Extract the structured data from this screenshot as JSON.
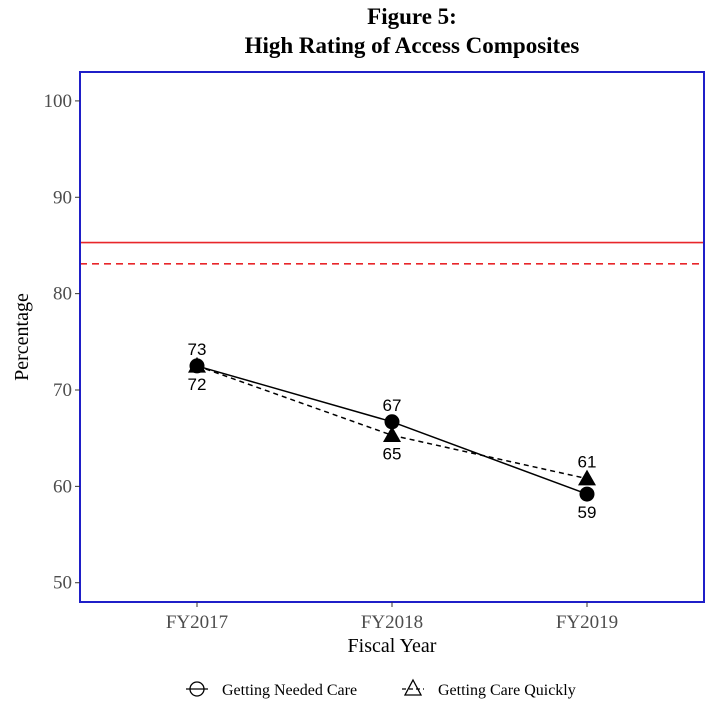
{
  "chart_data": {
    "type": "line",
    "title_lines": [
      "Figure 5:",
      "High Rating of Access Composites"
    ],
    "xlabel": "Fiscal Year",
    "ylabel": "Percentage",
    "categories": [
      "FY2017",
      "FY2018",
      "FY2019"
    ],
    "ylim": [
      48,
      103
    ],
    "yticks": [
      "50",
      "60",
      "70",
      "80",
      "90",
      "100"
    ],
    "grid": false,
    "legend_position": "bottom",
    "series": [
      {
        "name": "Getting Needed Care",
        "values": [
          72.5,
          66.7,
          59.2
        ],
        "labels": [
          "72",
          "67",
          "59"
        ],
        "label_position": [
          "below",
          "above",
          "below"
        ],
        "marker": "circle",
        "line": "solid",
        "color": "#000000"
      },
      {
        "name": "Getting Care Quickly",
        "values": [
          72.5,
          65.3,
          60.8
        ],
        "labels": [
          "73",
          "65",
          "61"
        ],
        "label_position": [
          "above",
          "below",
          "above"
        ],
        "marker": "triangle",
        "line": "dashed",
        "color": "#000000"
      }
    ],
    "reference_lines": [
      {
        "value": 85.3,
        "style": "solid",
        "color": "#e8262a"
      },
      {
        "value": 83.1,
        "style": "dashed",
        "color": "#e8262a"
      }
    ],
    "panel_border_color": "#1f1fc8"
  }
}
